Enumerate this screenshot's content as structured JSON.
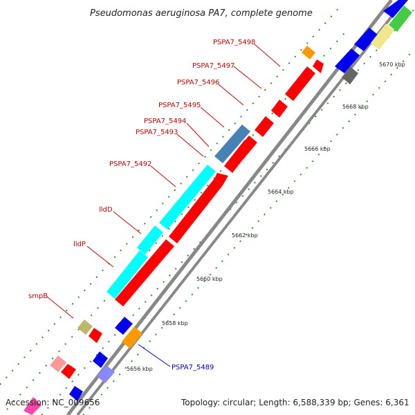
{
  "title": "Pseudomonas aeruginosa PA7, complete genome",
  "footer": {
    "accession": "Accession: NC_009656",
    "topology": "Topology: circular; Length: 6,588,339 bp; Genes: 6,361"
  },
  "colors": {
    "backbone": "#888888",
    "tick": "#2e8b2e",
    "red_label": "#cc0000",
    "blue_label": "#0000cc",
    "red_gene": "#ff0000",
    "cyan_gene": "#00ffff",
    "blue_gene": "#0000ee",
    "steel_gene": "#4682b4",
    "orange_gene": "#ff9900"
  },
  "kbp_labels": [
    "5656 kbp",
    "5658 kbp",
    "5660 kbp",
    "5662 kbp",
    "5664 kbp",
    "5666 kbp",
    "5668 kbp",
    "5670 kbp"
  ],
  "gene_labels": [
    {
      "text": "PSPA7_5498",
      "color": "red_label"
    },
    {
      "text": "PSPA7_5497",
      "color": "red_label"
    },
    {
      "text": "PSPA7_5496",
      "color": "red_label"
    },
    {
      "text": "PSPA7_5495",
      "color": "red_label"
    },
    {
      "text": "PSPA7_5494",
      "color": "red_label"
    },
    {
      "text": "PSPA7_5493",
      "color": "red_label"
    },
    {
      "text": "PSPA7_5492",
      "color": "red_label"
    },
    {
      "text": "lldD",
      "color": "red_label"
    },
    {
      "text": "lldP",
      "color": "red_label"
    },
    {
      "text": "smpB",
      "color": "red_label"
    },
    {
      "text": "PSPA7_5489",
      "color": "blue_label"
    }
  ]
}
